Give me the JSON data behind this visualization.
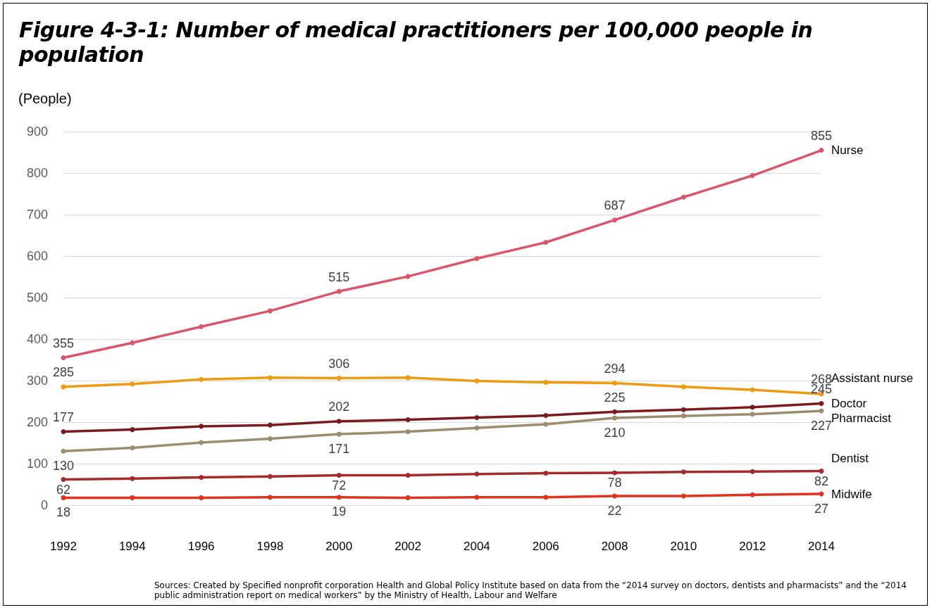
{
  "chart_data": {
    "type": "line",
    "title": "Figure 4-3-1: Number of medical practitioners per 100,000 people in population",
    "ylabel": "(People)",
    "categories": [
      "1992",
      "1994",
      "1996",
      "1998",
      "2000",
      "2002",
      "2004",
      "2006",
      "2008",
      "2010",
      "2012",
      "2014"
    ],
    "series": [
      {
        "name": "Nurse",
        "color": "#d9566b",
        "values": [
          355,
          391,
          430,
          468,
          515,
          551,
          594,
          633,
          687,
          742,
          794,
          855
        ],
        "value_labels": [
          "355",
          null,
          null,
          null,
          "515",
          null,
          null,
          null,
          "687",
          null,
          null,
          "855"
        ]
      },
      {
        "name": "Assistant nurse",
        "color": "#ee9b11",
        "values": [
          285,
          292,
          303,
          307,
          306,
          307,
          299,
          296,
          294,
          285,
          278,
          268
        ],
        "value_labels": [
          "285",
          null,
          null,
          null,
          "306",
          null,
          null,
          null,
          "294",
          null,
          null,
          "268"
        ]
      },
      {
        "name": "Doctor",
        "color": "#7b1a1f",
        "values": [
          177,
          182,
          190,
          193,
          202,
          206,
          211,
          216,
          225,
          230,
          236,
          245
        ],
        "value_labels": [
          "177",
          null,
          null,
          null,
          "202",
          null,
          null,
          null,
          "225",
          null,
          null,
          "245"
        ]
      },
      {
        "name": "Pharmacist",
        "color": "#9b8e6f",
        "values": [
          130,
          138,
          151,
          160,
          171,
          177,
          186,
          195,
          210,
          215,
          219,
          227
        ],
        "value_labels": [
          "130",
          null,
          null,
          null,
          "171",
          null,
          null,
          null,
          "210",
          null,
          null,
          "227"
        ]
      },
      {
        "name": "Dentist",
        "color": "#a52a2a",
        "values": [
          62,
          64,
          67,
          69,
          72,
          72,
          75,
          77,
          78,
          80,
          81,
          82
        ],
        "value_labels": [
          "62",
          null,
          null,
          null,
          "72",
          null,
          null,
          null,
          "78",
          null,
          null,
          "82"
        ]
      },
      {
        "name": "Midwife",
        "color": "#e0321c",
        "values": [
          18,
          18,
          18,
          19,
          19,
          18,
          19,
          19,
          22,
          22,
          25,
          27
        ],
        "value_labels": [
          "18",
          null,
          null,
          null,
          "19",
          null,
          null,
          null,
          "22",
          null,
          null,
          "27"
        ]
      }
    ],
    "ylim": [
      0,
      900
    ],
    "yticks": [
      0,
      100,
      200,
      300,
      400,
      500,
      600,
      700,
      800,
      900
    ],
    "grid": "y",
    "marker": "circle",
    "line_style": "solid",
    "legend": false,
    "annotations": [
      "Sources: Created by Specified nonprofit corporation Health and Global Policy Institute based on data from the “2014 survey on doctors, dentists and pharmacists” and the “2014 public administration report on medical workers” by the Ministry of Health, Labour and Welfare"
    ]
  }
}
